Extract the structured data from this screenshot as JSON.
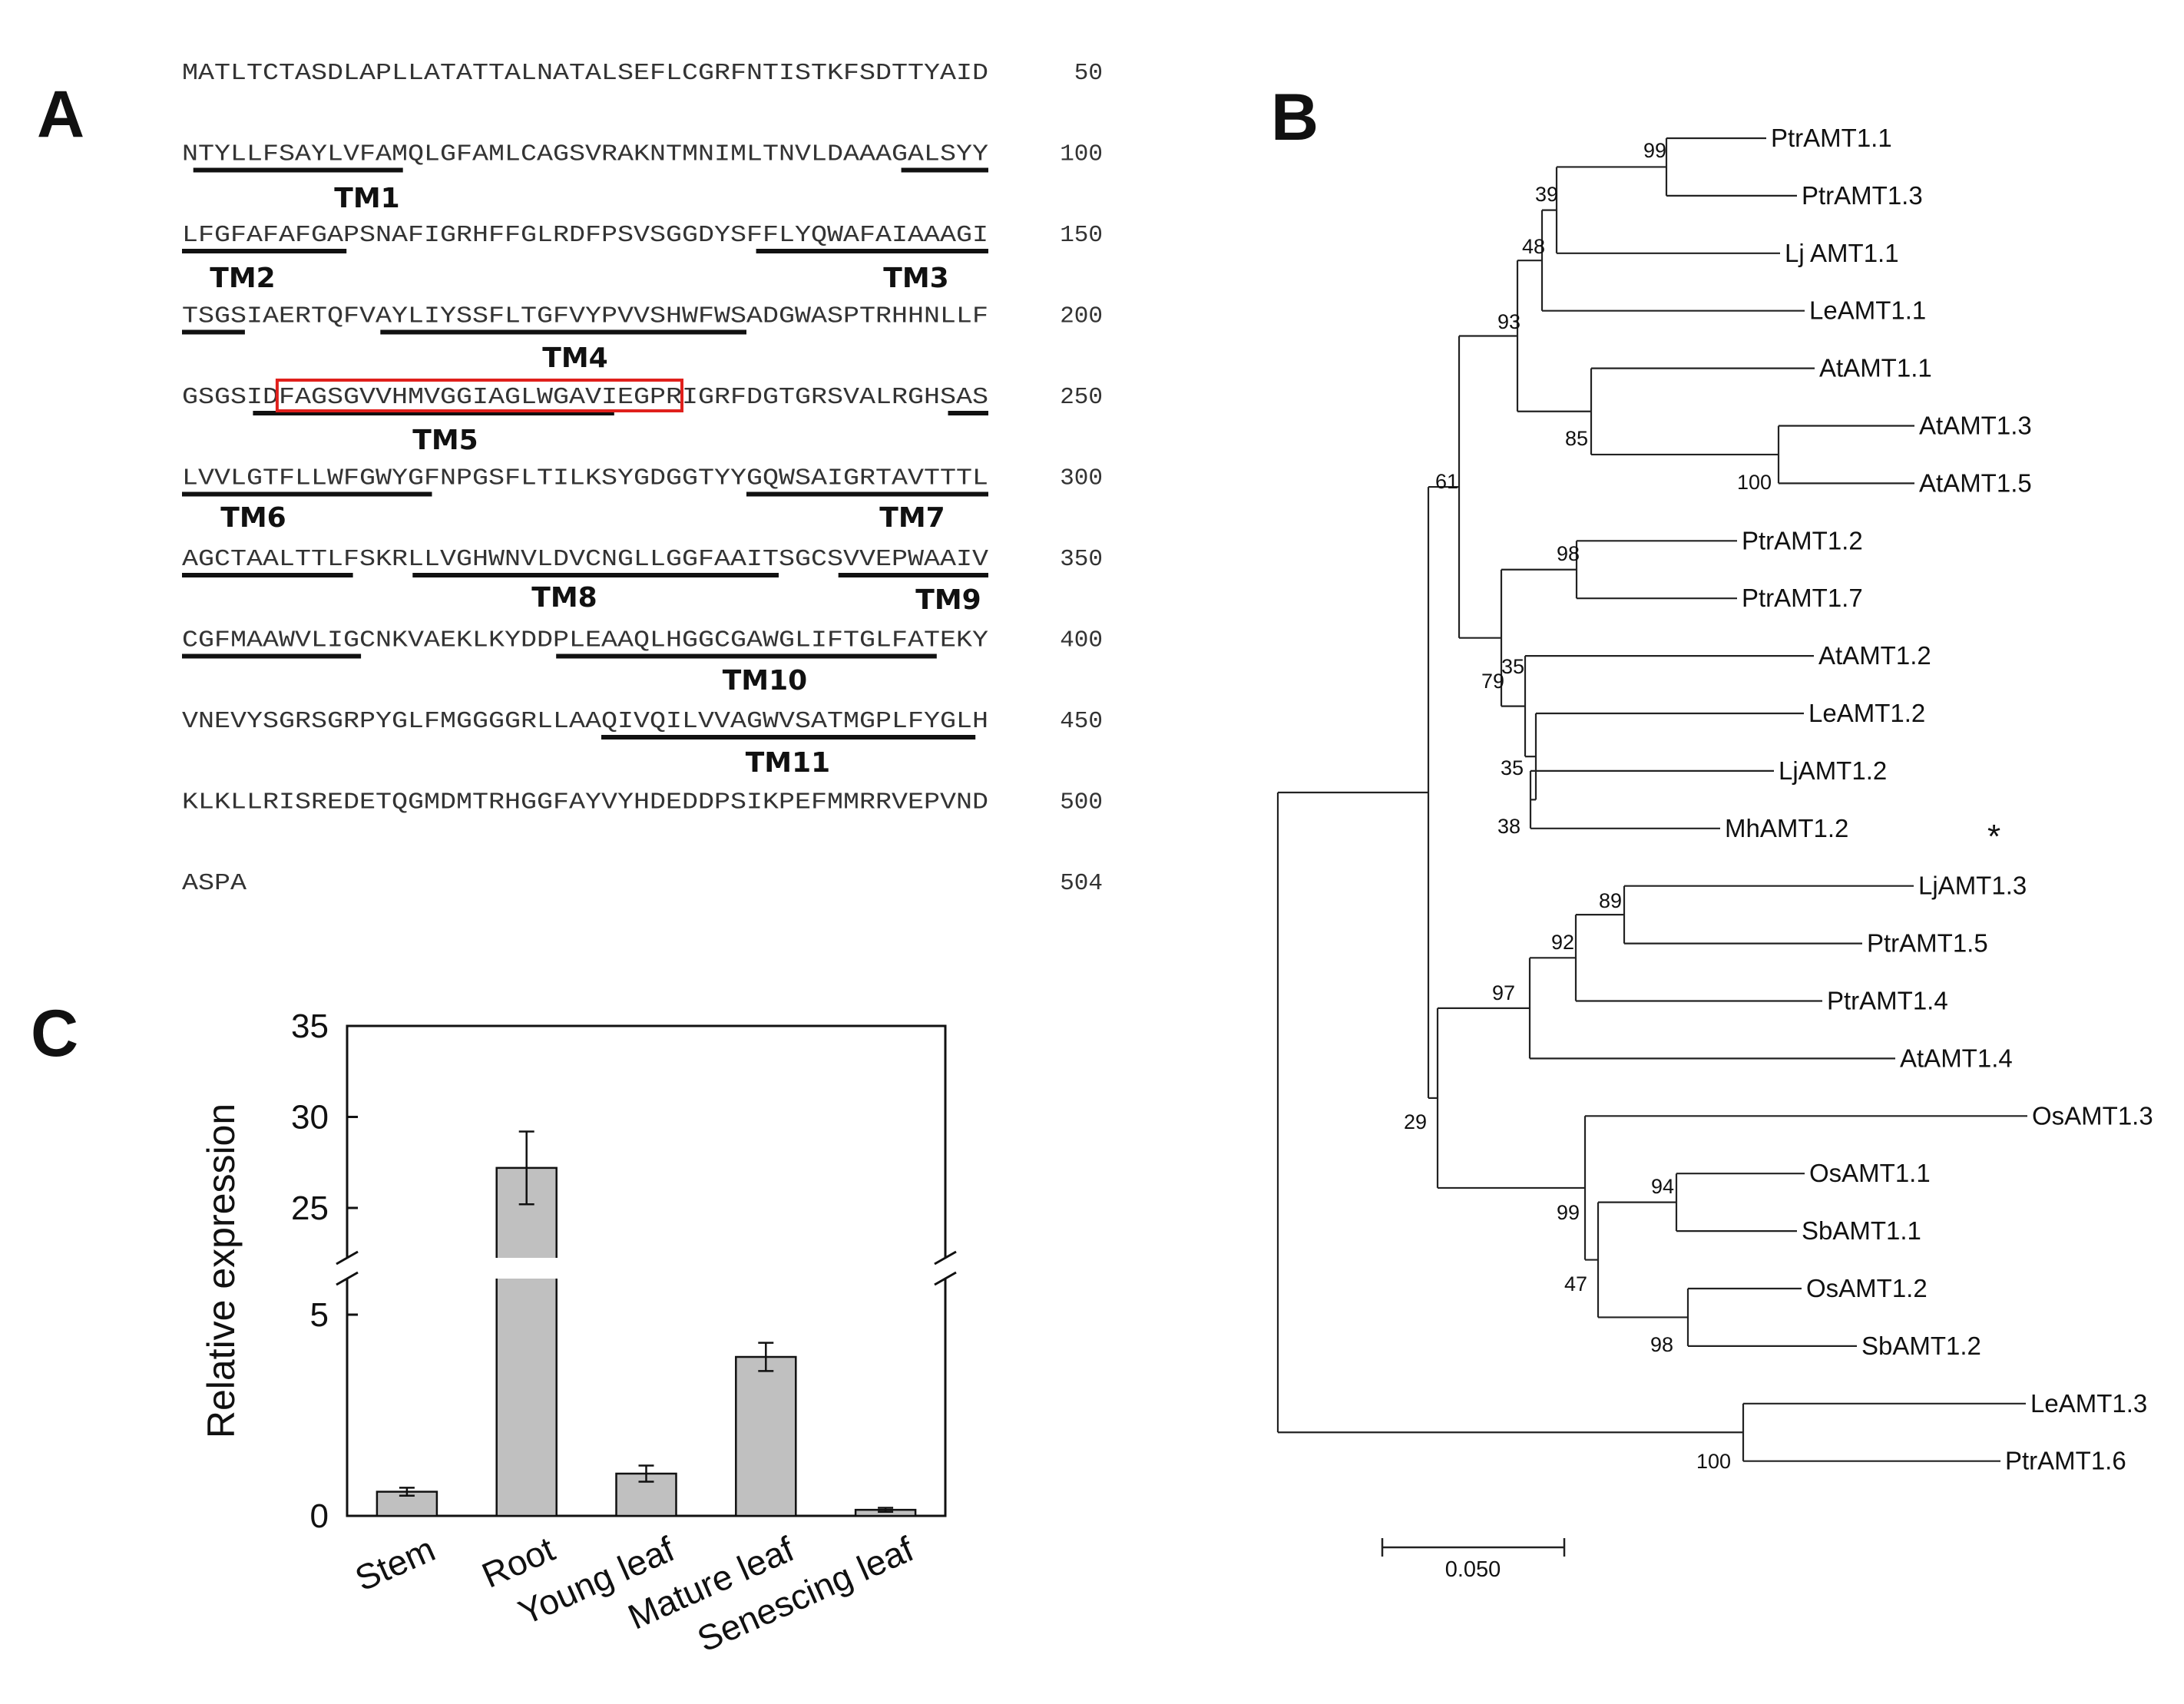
{
  "panels": {
    "a": "A",
    "b": "B",
    "c": "C"
  },
  "sequence": {
    "rows": [
      {
        "text": "MATLTCTASDLAPLLATATTALNATALSEFLCGRFNTISTKFSDTTYAID",
        "num": "50"
      },
      {
        "text": "NTYLLFSAYLVFAMQLGFAMLCAGSVRAKNTMNIMLTNVLDAAAGALSYY",
        "num": "100"
      },
      {
        "text": "LFGFAFAFGAPSNAFIGRHFFGLRDFPSVSGGDYSFFLYQWAFAIAAAGI",
        "num": "150"
      },
      {
        "text": "TSGSIAERTQFVAYLIYSSFLTGFVYPVVSHWFWSADGWASPTRHHNLLF",
        "num": "200"
      },
      {
        "text": "GSGSIDFAGSGVVHMVGGIAGLWGAVIEGPRIGRFDGTGRSVALRGHSAS",
        "num": "250"
      },
      {
        "text": "LVVLGTFLLWFGWYGFNPGSFLTILKSYGDGGTYYGQWSAIGRTAVTTTL",
        "num": "300"
      },
      {
        "text": "AGCTAALTTLFSKRLLVGHWNVLDVCNGLLGGFAAITSGCSVVEPWAAIV",
        "num": "350"
      },
      {
        "text": "CGFMAAWVLIGCNKVAEKLKYDDPLEAAQLHGGCGAWGLIFTGLFATEKY",
        "num": "400"
      },
      {
        "text": "VNEVYSGRSGRPYGLFMGGGGRLLAAQIVQILVVAGWVSATMGPLFYGLH",
        "num": "450"
      },
      {
        "text": "KLKLLRISREDETQGMDMTRHGGFAYVYHDEDDPSIKPEFMMRRVEPVND",
        "num": "500"
      },
      {
        "text": "ASPA",
        "num": "504"
      }
    ],
    "tm_labels": [
      "TM1",
      "TM2",
      "TM3",
      "TM4",
      "TM5",
      "TM6",
      "TM7",
      "TM8",
      "TM9",
      "TM10",
      "TM11"
    ],
    "highlight_color": "#e0201c"
  },
  "tree": {
    "leaves": [
      "PtrAMT1.1",
      "PtrAMT1.3",
      "Lj AMT1.1",
      "LeAMT1.1",
      "AtAMT1.1",
      "AtAMT1.3",
      "AtAMT1.5",
      "PtrAMT1.2",
      "PtrAMT1.7",
      "AtAMT1.2",
      "LeAMT1.2",
      "LjAMT1.2",
      "MhAMT1.2",
      "LjAMT1.3",
      "PtrAMT1.5",
      "PtrAMT1.4",
      "AtAMT1.4",
      "OsAMT1.3",
      "OsAMT1.1",
      "SbAMT1.1",
      "OsAMT1.2",
      "SbAMT1.2",
      "LeAMT1.3",
      "PtrAMT1.6"
    ],
    "bootstrap": [
      "99",
      "39",
      "48",
      "93",
      "85",
      "100",
      "61",
      "98",
      "35",
      "79",
      "35",
      "38",
      "89",
      "92",
      "97",
      "29",
      "94",
      "99",
      "47",
      "98",
      "100"
    ],
    "marker": "*",
    "scale_label": "0.050"
  },
  "chart_data": {
    "type": "bar",
    "categories": [
      "Stem",
      "Root",
      "Young leaf",
      "Mature leaf",
      "Senescing leaf"
    ],
    "values": [
      0.6,
      27.2,
      1.05,
      3.95,
      0.15
    ],
    "errors": [
      0.1,
      2.0,
      0.2,
      0.35,
      0.05
    ],
    "ylabel": "Relative expression",
    "xlabel": "",
    "y_ticks": [
      "0",
      "5",
      "25",
      "30",
      "35"
    ],
    "y_axis_break": [
      6.5,
      21.5
    ],
    "ylim": [
      0,
      35
    ],
    "bar_color": "#c0c0c0"
  }
}
